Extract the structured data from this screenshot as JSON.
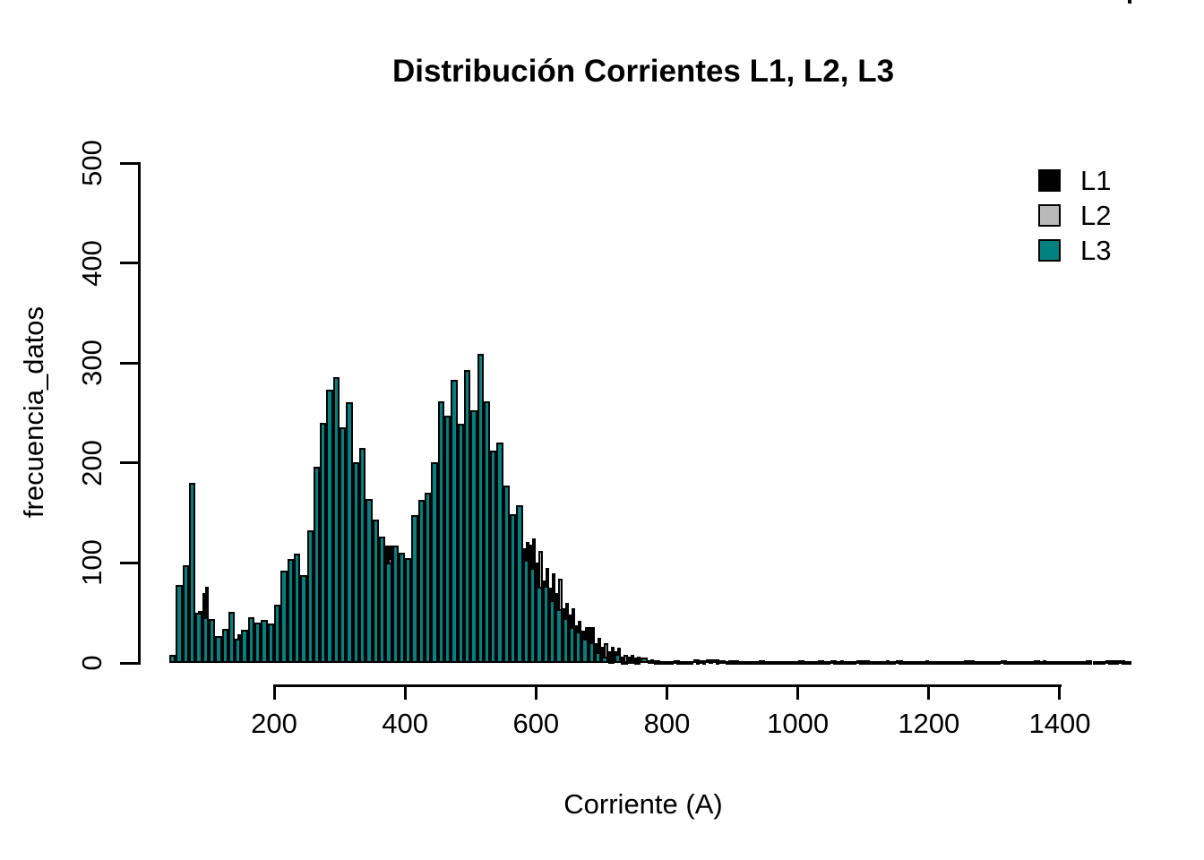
{
  "title": "Distribución Corrientes L1, L2, L3",
  "x_axis": {
    "label": "Corriente (A)",
    "ticks": [
      200,
      400,
      600,
      800,
      1000,
      1200,
      1400
    ]
  },
  "y_axis": {
    "label": "frecuencia_datos",
    "ticks": [
      0,
      100,
      200,
      300,
      400,
      500
    ]
  },
  "legend": [
    {
      "label": "L1",
      "color": "#000000"
    },
    {
      "label": "L2",
      "color": "#b9b9b9"
    },
    {
      "label": "L3",
      "color": "#008080"
    }
  ],
  "chart_data": {
    "type": "bar",
    "subtype": "overlaid-histogram",
    "title": "Distribución Corrientes L1, L2, L3",
    "xlabel": "Corriente (A)",
    "ylabel": "frecuencia_datos",
    "xlim": [
      40,
      1500
    ],
    "ylim": [
      0,
      500
    ],
    "grid": false,
    "legend_position": "top-right",
    "bin_start": 40,
    "bin_width": 10,
    "series": [
      {
        "name": "L1",
        "color": "#000000",
        "values": [
          8,
          78,
          98,
          180,
          50,
          70,
          44,
          27,
          34,
          51,
          24,
          33,
          46,
          40,
          43,
          39,
          58,
          92,
          104,
          109,
          88,
          133,
          196,
          240,
          273,
          286,
          236,
          261,
          201,
          215,
          164,
          143,
          126,
          117,
          117,
          110,
          105,
          148,
          163,
          170,
          201,
          262,
          247,
          283,
          239,
          293,
          253,
          309,
          262,
          212,
          220,
          177,
          149,
          158,
          115,
          118,
          100,
          82,
          75,
          70,
          55,
          48,
          38,
          32,
          36,
          20,
          16,
          12,
          12,
          6,
          6,
          5,
          4,
          3,
          3,
          2,
          2,
          2,
          2,
          2,
          2,
          2,
          2,
          2,
          2,
          2,
          3,
          2,
          2,
          2,
          3,
          2,
          2,
          2,
          2,
          2,
          3,
          2,
          2,
          3,
          2,
          2,
          2,
          2,
          2,
          2,
          3,
          2,
          2,
          2,
          2,
          3,
          2,
          2,
          2,
          2,
          2,
          2,
          2,
          2,
          2,
          2,
          3,
          2,
          2,
          2,
          2,
          2,
          2,
          2,
          2,
          2,
          3,
          2,
          2,
          2,
          2,
          2,
          2,
          2,
          3,
          2,
          2,
          2,
          3,
          2
        ]
      },
      {
        "name": "L2",
        "color": "#b9b9b9",
        "values": [
          8,
          78,
          98,
          180,
          52,
          76,
          44,
          27,
          34,
          51,
          29,
          33,
          46,
          40,
          43,
          39,
          58,
          92,
          104,
          109,
          88,
          133,
          196,
          240,
          273,
          286,
          236,
          261,
          201,
          215,
          164,
          143,
          126,
          105,
          117,
          110,
          105,
          148,
          163,
          170,
          201,
          262,
          247,
          283,
          239,
          293,
          253,
          309,
          262,
          212,
          220,
          177,
          149,
          158,
          121,
          125,
          112,
          95,
          90,
          84,
          60,
          55,
          42,
          36,
          30,
          25,
          20,
          16,
          15,
          8,
          8,
          6,
          5,
          4,
          3,
          2,
          2,
          2,
          2,
          2,
          2,
          2,
          3,
          2,
          3,
          3,
          2,
          2,
          2,
          2,
          3,
          2,
          2,
          2,
          2,
          2,
          3,
          2,
          2,
          2,
          2,
          2,
          3,
          2,
          2,
          2,
          2,
          2,
          2,
          3,
          2,
          2,
          2,
          2,
          2,
          3,
          2,
          2,
          2,
          2,
          2,
          3,
          2,
          2,
          2,
          2,
          2,
          2,
          2,
          2,
          2,
          2,
          2,
          3,
          2,
          2,
          2,
          2,
          2,
          2,
          2,
          2,
          2,
          2,
          3,
          2
        ]
      },
      {
        "name": "L3",
        "color": "#008080",
        "values": [
          8,
          78,
          98,
          180,
          50,
          46,
          44,
          27,
          34,
          51,
          24,
          33,
          46,
          40,
          43,
          39,
          58,
          92,
          104,
          109,
          88,
          133,
          196,
          240,
          273,
          286,
          236,
          261,
          201,
          215,
          164,
          143,
          126,
          100,
          117,
          110,
          105,
          148,
          163,
          170,
          201,
          262,
          247,
          283,
          239,
          293,
          253,
          309,
          262,
          212,
          220,
          177,
          149,
          158,
          103,
          95,
          76,
          77,
          63,
          54,
          45,
          36,
          31,
          24,
          21,
          11,
          6,
          3,
          9,
          2,
          3,
          2,
          5,
          3,
          2,
          2,
          2,
          3,
          2,
          2,
          4,
          3,
          4,
          4,
          3,
          2,
          2,
          2,
          2,
          2,
          2,
          2,
          2,
          2,
          2,
          2,
          2,
          2,
          2,
          2,
          2,
          3,
          2,
          2,
          2,
          3,
          2,
          2,
          2,
          2,
          2,
          3,
          2,
          2,
          2,
          2,
          2,
          2,
          2,
          2,
          2,
          2,
          2,
          2,
          2,
          2,
          2,
          3,
          2,
          2,
          2,
          2,
          2,
          2,
          2,
          2,
          2,
          2,
          2,
          2,
          2,
          2,
          2,
          3,
          2,
          3,
          2
        ]
      }
    ]
  }
}
